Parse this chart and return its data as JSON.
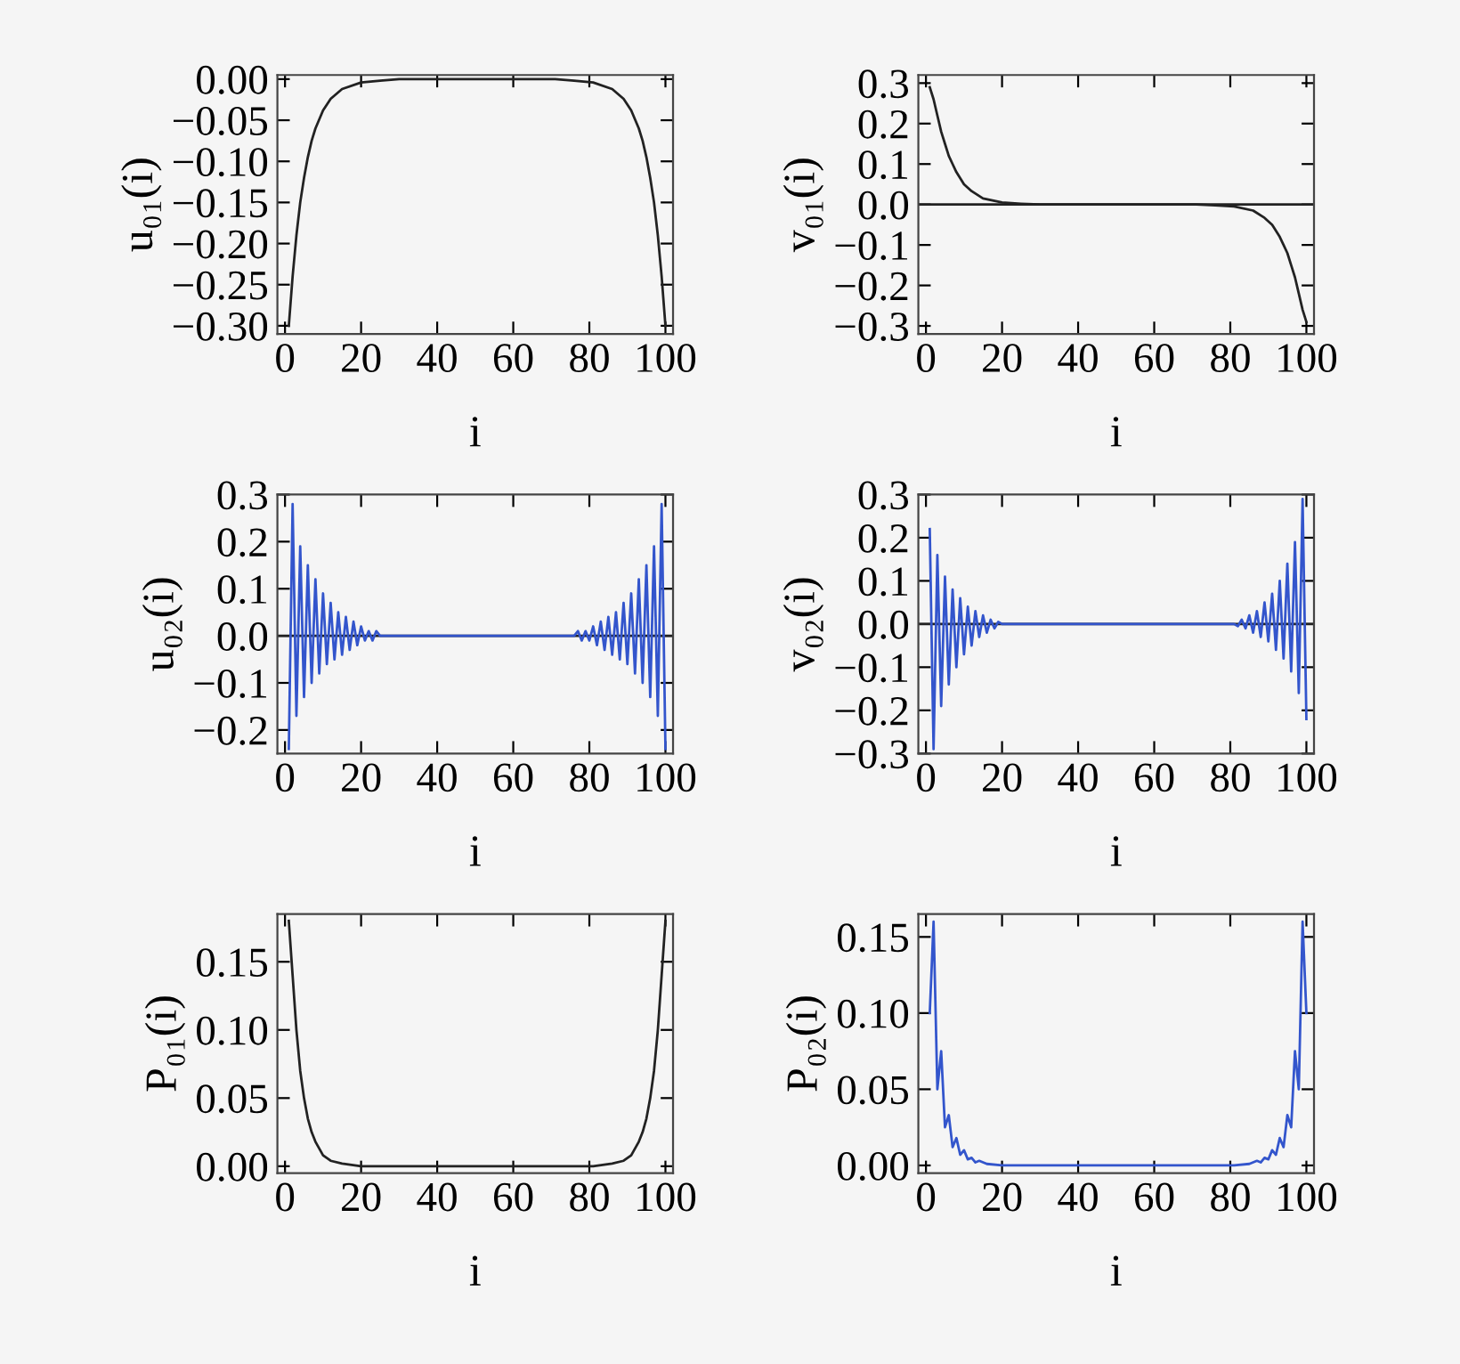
{
  "chart_data": [
    {
      "type": "line",
      "ylabel": "u₀₁(i)",
      "xlabel": "i",
      "xlim": [
        -2,
        102
      ],
      "ylim": [
        -0.31,
        0.005
      ],
      "xticks": [
        0,
        20,
        40,
        60,
        80,
        100
      ],
      "yticks": [
        {
          "value": 0,
          "label": "0.00"
        },
        {
          "value": -0.05,
          "label": "−0.05"
        },
        {
          "value": -0.1,
          "label": "−0.10"
        },
        {
          "value": -0.15,
          "label": "−0.15"
        },
        {
          "value": -0.2,
          "label": "−0.20"
        },
        {
          "value": -0.25,
          "label": "−0.25"
        },
        {
          "value": -0.3,
          "label": "−0.30"
        }
      ],
      "series": [
        {
          "color": "#222222",
          "x": [
            1,
            2,
            3,
            4,
            5,
            6,
            7,
            8,
            10,
            12,
            15,
            20,
            25,
            30,
            50,
            71,
            76,
            81,
            86,
            89,
            91,
            93,
            94,
            95,
            96,
            97,
            98,
            99,
            100
          ],
          "values": [
            -0.3,
            -0.24,
            -0.19,
            -0.15,
            -0.12,
            -0.095,
            -0.075,
            -0.06,
            -0.038,
            -0.024,
            -0.012,
            -0.004,
            -0.002,
            0,
            0,
            0,
            -0.002,
            -0.004,
            -0.012,
            -0.024,
            -0.038,
            -0.06,
            -0.075,
            -0.095,
            -0.12,
            -0.15,
            -0.19,
            -0.24,
            -0.3
          ]
        }
      ]
    },
    {
      "type": "line",
      "ylabel": "v₀₁(i)",
      "xlabel": "i",
      "xlim": [
        -2,
        102
      ],
      "ylim": [
        -0.32,
        0.32
      ],
      "xticks": [
        0,
        20,
        40,
        60,
        80,
        100
      ],
      "yticks": [
        {
          "value": 0.3,
          "label": "0.3"
        },
        {
          "value": 0.2,
          "label": "0.2"
        },
        {
          "value": 0.1,
          "label": "0.1"
        },
        {
          "value": 0,
          "label": "0.0"
        },
        {
          "value": -0.1,
          "label": "−0.1"
        },
        {
          "value": -0.2,
          "label": "−0.2"
        },
        {
          "value": -0.3,
          "label": "−0.3"
        }
      ],
      "ref_lines": [
        {
          "axis": "y",
          "value": 0,
          "color": "#222222"
        }
      ],
      "series": [
        {
          "color": "#222222",
          "x": [
            1,
            2,
            3,
            4,
            5,
            6,
            7,
            8,
            10,
            12,
            15,
            20,
            25,
            30,
            50,
            71,
            76,
            81,
            86,
            89,
            91,
            93,
            94,
            95,
            96,
            97,
            98,
            99,
            100
          ],
          "values": [
            0.29,
            0.26,
            0.22,
            0.18,
            0.15,
            0.12,
            0.1,
            0.08,
            0.05,
            0.033,
            0.015,
            0.005,
            0.002,
            0,
            0,
            0,
            -0.002,
            -0.005,
            -0.015,
            -0.033,
            -0.05,
            -0.08,
            -0.1,
            -0.12,
            -0.15,
            -0.18,
            -0.22,
            -0.26,
            -0.29
          ]
        }
      ]
    },
    {
      "type": "line",
      "ylabel": "u₀₂(i)",
      "xlabel": "i",
      "xlim": [
        -2,
        102
      ],
      "ylim": [
        -0.25,
        0.3
      ],
      "xticks": [
        0,
        20,
        40,
        60,
        80,
        100
      ],
      "yticks": [
        {
          "value": 0.3,
          "label": "0.3"
        },
        {
          "value": 0.2,
          "label": "0.2"
        },
        {
          "value": 0.1,
          "label": "0.1"
        },
        {
          "value": 0,
          "label": "0.0"
        },
        {
          "value": -0.1,
          "label": "−0.1"
        },
        {
          "value": -0.2,
          "label": "−0.2"
        }
      ],
      "ref_lines": [
        {
          "axis": "y",
          "value": 0,
          "color": "#222222"
        }
      ],
      "series": [
        {
          "color": "#3355cc",
          "x": [
            1,
            2,
            3,
            4,
            5,
            6,
            7,
            8,
            9,
            10,
            11,
            12,
            13,
            14,
            15,
            16,
            17,
            18,
            19,
            20,
            21,
            22,
            23,
            24,
            25,
            50,
            76,
            77,
            78,
            79,
            80,
            81,
            82,
            83,
            84,
            85,
            86,
            87,
            88,
            89,
            90,
            91,
            92,
            93,
            94,
            95,
            96,
            97,
            98,
            99,
            100
          ],
          "values": [
            -0.24,
            0.28,
            -0.17,
            0.19,
            -0.13,
            0.15,
            -0.1,
            0.12,
            -0.08,
            0.09,
            -0.06,
            0.07,
            -0.05,
            0.05,
            -0.04,
            0.04,
            -0.03,
            0.03,
            -0.02,
            0.02,
            -0.01,
            0.01,
            -0.01,
            0.01,
            0,
            0,
            0,
            0.01,
            -0.01,
            0.01,
            -0.01,
            0.02,
            -0.02,
            0.03,
            -0.03,
            0.04,
            -0.04,
            0.05,
            -0.05,
            0.07,
            -0.06,
            0.09,
            -0.08,
            0.12,
            -0.1,
            0.15,
            -0.13,
            0.19,
            -0.17,
            0.28,
            -0.24
          ]
        }
      ]
    },
    {
      "type": "line",
      "ylabel": "v₀₂(i)",
      "xlabel": "i",
      "xlim": [
        -2,
        102
      ],
      "ylim": [
        -0.3,
        0.3
      ],
      "xticks": [
        0,
        20,
        40,
        60,
        80,
        100
      ],
      "yticks": [
        {
          "value": 0.3,
          "label": "0.3"
        },
        {
          "value": 0.2,
          "label": "0.2"
        },
        {
          "value": 0.1,
          "label": "0.1"
        },
        {
          "value": 0,
          "label": "0.0"
        },
        {
          "value": -0.1,
          "label": "−0.1"
        },
        {
          "value": -0.2,
          "label": "−0.2"
        },
        {
          "value": -0.3,
          "label": "−0.3"
        }
      ],
      "ref_lines": [
        {
          "axis": "y",
          "value": 0,
          "color": "#222222"
        }
      ],
      "series": [
        {
          "color": "#3355cc",
          "x": [
            1,
            2,
            3,
            4,
            5,
            6,
            7,
            8,
            9,
            10,
            11,
            12,
            13,
            14,
            15,
            16,
            17,
            18,
            19,
            20,
            50,
            81,
            82,
            83,
            84,
            85,
            86,
            87,
            88,
            89,
            90,
            91,
            92,
            93,
            94,
            95,
            96,
            97,
            98,
            99,
            100
          ],
          "values": [
            0.22,
            -0.29,
            0.16,
            -0.19,
            0.11,
            -0.14,
            0.08,
            -0.1,
            0.06,
            -0.07,
            0.04,
            -0.05,
            0.03,
            -0.03,
            0.02,
            -0.02,
            0.01,
            -0.01,
            0.005,
            0,
            0,
            0,
            -0.005,
            0.01,
            -0.01,
            0.02,
            -0.02,
            0.03,
            -0.03,
            0.05,
            -0.04,
            0.07,
            -0.06,
            0.1,
            -0.08,
            0.14,
            -0.11,
            0.19,
            -0.16,
            0.29,
            -0.22
          ]
        }
      ]
    },
    {
      "type": "line",
      "ylabel": "P₀₁(i)",
      "xlabel": "i",
      "xlim": [
        -2,
        102
      ],
      "ylim": [
        -0.005,
        0.185
      ],
      "xticks": [
        0,
        20,
        40,
        60,
        80,
        100
      ],
      "yticks": [
        {
          "value": 0,
          "label": "0.00"
        },
        {
          "value": 0.05,
          "label": "0.05"
        },
        {
          "value": 0.1,
          "label": "0.10"
        },
        {
          "value": 0.15,
          "label": "0.15"
        }
      ],
      "series": [
        {
          "color": "#222222",
          "x": [
            1,
            2,
            3,
            4,
            5,
            6,
            7,
            8,
            10,
            12,
            15,
            20,
            30,
            50,
            71,
            81,
            86,
            89,
            91,
            93,
            94,
            95,
            96,
            97,
            98,
            99,
            100
          ],
          "values": [
            0.18,
            0.14,
            0.1,
            0.07,
            0.05,
            0.035,
            0.025,
            0.018,
            0.008,
            0.004,
            0.002,
            0,
            0,
            0,
            0,
            0,
            0.002,
            0.004,
            0.008,
            0.018,
            0.025,
            0.035,
            0.05,
            0.07,
            0.1,
            0.14,
            0.18
          ]
        }
      ]
    },
    {
      "type": "line",
      "ylabel": "P₀₂(i)",
      "xlabel": "i",
      "xlim": [
        -2,
        102
      ],
      "ylim": [
        -0.005,
        0.165
      ],
      "xticks": [
        0,
        20,
        40,
        60,
        80,
        100
      ],
      "yticks": [
        {
          "value": 0,
          "label": "0.00"
        },
        {
          "value": 0.05,
          "label": "0.05"
        },
        {
          "value": 0.1,
          "label": "0.10"
        },
        {
          "value": 0.15,
          "label": "0.15"
        }
      ],
      "series": [
        {
          "color": "#3355cc",
          "x": [
            1,
            2,
            3,
            4,
            5,
            6,
            7,
            8,
            9,
            10,
            11,
            12,
            13,
            14,
            16,
            20,
            25,
            50,
            76,
            81,
            85,
            87,
            88,
            89,
            90,
            91,
            92,
            93,
            94,
            95,
            96,
            97,
            98,
            99,
            100
          ],
          "values": [
            0.1,
            0.16,
            0.05,
            0.075,
            0.025,
            0.033,
            0.012,
            0.018,
            0.007,
            0.01,
            0.004,
            0.005,
            0.002,
            0.003,
            0.001,
            0,
            0,
            0,
            0,
            0,
            0.001,
            0.003,
            0.002,
            0.005,
            0.004,
            0.01,
            0.007,
            0.018,
            0.012,
            0.033,
            0.025,
            0.075,
            0.05,
            0.16,
            0.1
          ]
        }
      ]
    }
  ]
}
